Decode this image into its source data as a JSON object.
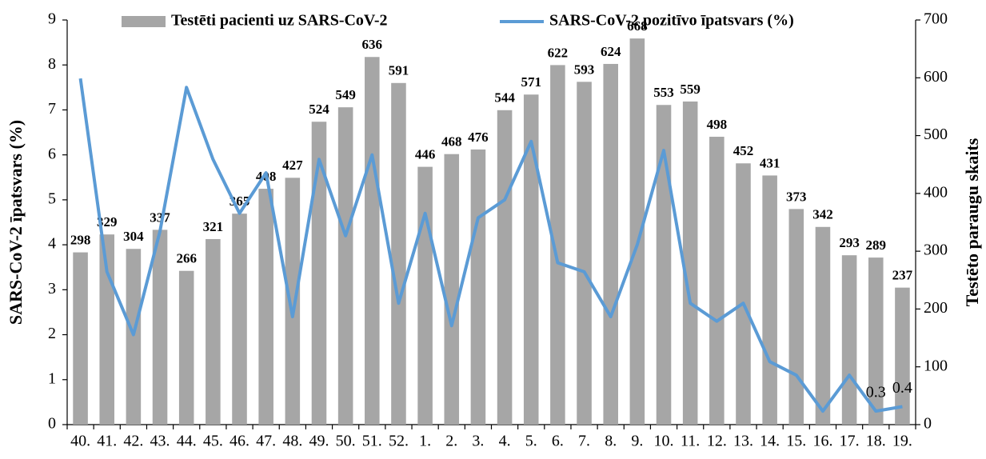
{
  "chart_data": {
    "type": "bar",
    "y_label": "SARS-CoV-2 īpatsvars (%)",
    "y2_label": "Testēto paraugu skaits",
    "categories": [
      "40.",
      "41.",
      "42.",
      "43.",
      "44.",
      "45.",
      "46.",
      "47.",
      "48.",
      "49.",
      "50.",
      "51.",
      "52.",
      "1.",
      "2.",
      "3.",
      "4.",
      "5.",
      "6.",
      "7.",
      "8.",
      "9.",
      "10.",
      "11.",
      "12.",
      "13.",
      "14.",
      "15.",
      "16.",
      "17.",
      "18.",
      "19."
    ],
    "series": [
      {
        "name": "Testēti pacienti uz SARS-CoV-2",
        "type": "bar",
        "axis": "y2",
        "color": "#a6a6a6",
        "show_labels": true,
        "values": [
          298,
          329,
          304,
          337,
          266,
          321,
          365,
          408,
          427,
          524,
          549,
          636,
          591,
          446,
          468,
          476,
          544,
          571,
          622,
          593,
          624,
          668,
          553,
          559,
          498,
          452,
          431,
          373,
          342,
          293,
          289,
          237
        ]
      },
      {
        "name": "SARS-CoV-2 pozitīvo īpatsvars (%)",
        "type": "line",
        "color": "#5b9bd5",
        "values": [
          7.7,
          3.4,
          2.0,
          4.3,
          7.5,
          5.9,
          4.7,
          5.6,
          2.4,
          5.9,
          4.2,
          6.0,
          2.7,
          4.7,
          2.2,
          4.6,
          5.0,
          6.3,
          3.6,
          3.4,
          2.4,
          4.0,
          6.1,
          2.7,
          2.3,
          2.7,
          1.4,
          1.1,
          0.3,
          1.1,
          0.3,
          0.4
        ],
        "labeled": [
          false,
          false,
          false,
          false,
          false,
          false,
          false,
          false,
          false,
          false,
          false,
          false,
          false,
          false,
          false,
          false,
          false,
          false,
          false,
          false,
          false,
          false,
          false,
          false,
          false,
          false,
          false,
          false,
          false,
          false,
          true,
          true
        ]
      }
    ],
    "ylim": [
      0,
      9
    ],
    "yticks": [
      0,
      1,
      2,
      3,
      4,
      5,
      6,
      7,
      8,
      9
    ],
    "y2lim": [
      0,
      700
    ],
    "y2ticks": [
      0,
      100,
      200,
      300,
      400,
      500,
      600,
      700
    ],
    "grid": false
  }
}
